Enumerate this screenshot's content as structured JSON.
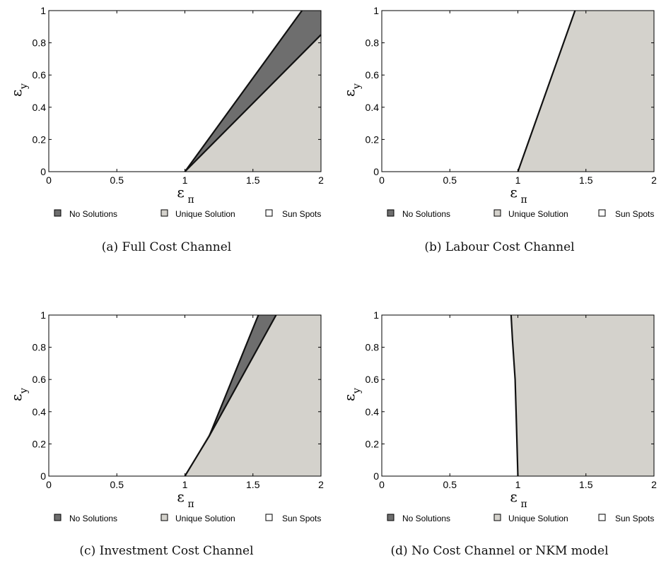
{
  "legend_items": [
    {
      "label": "No Solutions",
      "color": "#6e6e6e"
    },
    {
      "label": "Unique Solution",
      "color": "#d4d2cc"
    },
    {
      "label": "Sun Spots",
      "color": "#ffffff"
    }
  ],
  "axis_symbols": {
    "x_main": "ε",
    "x_sub": "π",
    "y_main": "ε",
    "y_sub": "y"
  },
  "chart_data": [
    {
      "type": "area",
      "caption": "(a) Full Cost Channel",
      "xlabel": "επ",
      "ylabel": "εy",
      "xlim": [
        0,
        2
      ],
      "ylim": [
        0,
        1
      ],
      "xticks": [
        "0",
        "0.5",
        "1",
        "1.5",
        "2"
      ],
      "yticks": [
        "0",
        "0.2",
        "0.4",
        "0.6",
        "0.8",
        "1"
      ],
      "grid": false,
      "regions": [
        {
          "name": "Unique Solution",
          "color": "#d4d2cc",
          "points": [
            [
              1.0,
              0
            ],
            [
              2.0,
              0
            ],
            [
              2.0,
              0.85
            ]
          ]
        },
        {
          "name": "No Solutions",
          "color": "#6e6e6e",
          "points": [
            [
              1.0,
              0
            ],
            [
              2.0,
              0.85
            ],
            [
              2.0,
              1.0
            ],
            [
              1.86,
              1.0
            ]
          ]
        }
      ],
      "boundaries": [
        [
          [
            1.0,
            0
          ],
          [
            1.86,
            1.0
          ]
        ],
        [
          [
            1.0,
            0
          ],
          [
            2.0,
            0.85
          ]
        ]
      ]
    },
    {
      "type": "area",
      "caption": "(b) Labour Cost Channel",
      "xlabel": "επ",
      "ylabel": "εy",
      "xlim": [
        0,
        2
      ],
      "ylim": [
        0,
        1
      ],
      "xticks": [
        "0",
        "0.5",
        "1",
        "1.5",
        "2"
      ],
      "yticks": [
        "0",
        "0.2",
        "0.4",
        "0.6",
        "0.8",
        "1"
      ],
      "grid": false,
      "regions": [
        {
          "name": "Unique Solution",
          "color": "#d4d2cc",
          "points": [
            [
              1.0,
              0
            ],
            [
              2.0,
              0
            ],
            [
              2.0,
              1.0
            ],
            [
              1.42,
              1.0
            ]
          ]
        }
      ],
      "boundaries": [
        [
          [
            1.0,
            0
          ],
          [
            1.42,
            1.0
          ]
        ]
      ]
    },
    {
      "type": "area",
      "caption": "(c) Investment Cost Channel",
      "xlabel": "επ",
      "ylabel": "εy",
      "xlim": [
        0,
        2
      ],
      "ylim": [
        0,
        1
      ],
      "xticks": [
        "0",
        "0.5",
        "1",
        "1.5",
        "2"
      ],
      "yticks": [
        "0",
        "0.2",
        "0.4",
        "0.6",
        "0.8",
        "1"
      ],
      "grid": false,
      "regions": [
        {
          "name": "Unique Solution",
          "color": "#d4d2cc",
          "points": [
            [
              1.0,
              0
            ],
            [
              2.0,
              0
            ],
            [
              2.0,
              1.0
            ],
            [
              1.67,
              1.0
            ]
          ]
        },
        {
          "name": "No Solutions",
          "color": "#6e6e6e",
          "points": [
            [
              1.18,
              0.25
            ],
            [
              1.54,
              1.0
            ],
            [
              1.67,
              1.0
            ]
          ]
        }
      ],
      "boundaries": [
        [
          [
            1.0,
            0
          ],
          [
            1.18,
            0.25
          ],
          [
            1.54,
            1.0
          ]
        ],
        [
          [
            1.18,
            0.25
          ],
          [
            1.67,
            1.0
          ]
        ]
      ]
    },
    {
      "type": "area",
      "caption": "(d) No Cost Channel or NKM model",
      "xlabel": "επ",
      "ylabel": "εy",
      "xlim": [
        0,
        2
      ],
      "ylim": [
        0,
        1
      ],
      "xticks": [
        "0",
        "0.5",
        "1",
        "1.5",
        "2"
      ],
      "yticks": [
        "0",
        "0.2",
        "0.4",
        "0.6",
        "0.8",
        "1"
      ],
      "grid": false,
      "regions": [
        {
          "name": "Unique Solution",
          "color": "#d4d2cc",
          "points": [
            [
              1.0,
              0
            ],
            [
              2.0,
              0
            ],
            [
              2.0,
              1.0
            ],
            [
              0.95,
              1.0
            ],
            [
              0.96,
              0.85
            ],
            [
              0.98,
              0.6
            ],
            [
              0.99,
              0.3
            ]
          ]
        }
      ],
      "boundaries": [
        [
          [
            1.0,
            0
          ],
          [
            0.99,
            0.3
          ],
          [
            0.98,
            0.6
          ],
          [
            0.96,
            0.85
          ],
          [
            0.95,
            1.0
          ]
        ]
      ]
    }
  ]
}
